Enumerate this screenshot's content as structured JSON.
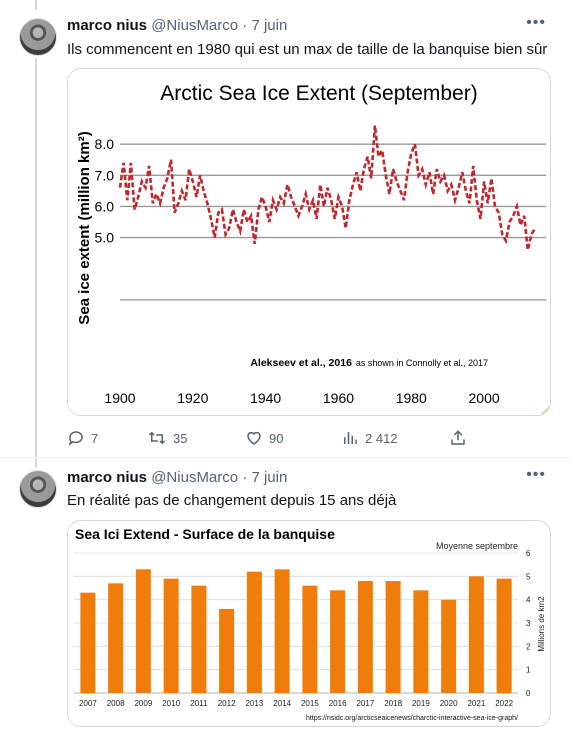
{
  "tweets": [
    {
      "name": "marco nius",
      "handle": "@NiusMarco",
      "date": "· 7 juin",
      "text": "Ils commencent en 1980 qui est un max de taille de la banquise bien sûr",
      "actions": {
        "replies": "7",
        "retweets": "35",
        "likes": "90",
        "views": "2 412"
      }
    },
    {
      "name": "marco nius",
      "handle": "@NiusMarco",
      "date": "· 7 juin",
      "text": "En réalité pas de changement depuis 15 ans déjà"
    }
  ],
  "chart_data": [
    {
      "type": "line",
      "title": "Arctic Sea Ice Extent (September)",
      "ylabel": "Sea ice extent (million km²)",
      "xlabel": "",
      "citation_bold": "Alekseev et al., 2016",
      "citation_rest": "as shown in Connolly et al., 2017",
      "xlim": [
        1900,
        2017
      ],
      "ylim": [
        2.0,
        9.0
      ],
      "x_ticks": [
        "1900",
        "1920",
        "1940",
        "1960",
        "1980",
        "2000"
      ],
      "y_ticks": [
        "5.0",
        "6.0",
        "7.0",
        "8.0"
      ],
      "line_color": "#c1272d",
      "x": [
        1900,
        1901,
        1902,
        1903,
        1904,
        1905,
        1906,
        1907,
        1908,
        1909,
        1910,
        1911,
        1912,
        1913,
        1914,
        1915,
        1916,
        1917,
        1918,
        1919,
        1920,
        1921,
        1922,
        1923,
        1924,
        1925,
        1926,
        1927,
        1928,
        1929,
        1930,
        1931,
        1932,
        1933,
        1934,
        1935,
        1936,
        1937,
        1938,
        1939,
        1940,
        1941,
        1942,
        1943,
        1944,
        1945,
        1946,
        1947,
        1948,
        1949,
        1950,
        1951,
        1952,
        1953,
        1954,
        1955,
        1956,
        1957,
        1958,
        1959,
        1960,
        1961,
        1962,
        1963,
        1964,
        1965,
        1966,
        1967,
        1968,
        1969,
        1970,
        1971,
        1972,
        1973,
        1974,
        1975,
        1976,
        1977,
        1978,
        1979,
        1980,
        1981,
        1982,
        1983,
        1984,
        1985,
        1986,
        1987,
        1988,
        1989,
        1990,
        1991,
        1992,
        1993,
        1994,
        1995,
        1996,
        1997,
        1998,
        1999,
        2000,
        2001,
        2002,
        2003,
        2004,
        2005,
        2006,
        2007,
        2008,
        2009,
        2010,
        2011,
        2012,
        2013,
        2014
      ],
      "y": [
        6.6,
        7.4,
        6.2,
        7.4,
        5.9,
        6.3,
        6.8,
        6.6,
        7.3,
        6.1,
        6.4,
        6.1,
        6.6,
        6.9,
        7.5,
        5.8,
        6.1,
        6.5,
        6.2,
        7.2,
        6.8,
        6.3,
        7.0,
        6.5,
        6.1,
        5.6,
        5.0,
        5.8,
        5.9,
        5.1,
        5.3,
        5.9,
        5.5,
        5.2,
        5.9,
        5.5,
        5.7,
        4.8,
        5.9,
        6.3,
        6.0,
        5.5,
        6.2,
        5.9,
        6.3,
        6.1,
        6.7,
        6.3,
        6.0,
        5.7,
        6.0,
        6.4,
        5.9,
        6.2,
        5.6,
        6.7,
        6.0,
        6.6,
        6.2,
        5.6,
        6.3,
        6.0,
        5.3,
        6.2,
        6.7,
        7.1,
        6.5,
        7.2,
        7.6,
        6.9,
        8.6,
        7.6,
        7.8,
        7.0,
        6.4,
        7.2,
        6.8,
        6.5,
        6.2,
        7.1,
        7.7,
        8.0,
        7.0,
        7.2,
        6.7,
        7.1,
        6.4,
        7.2,
        6.8,
        7.0,
        6.5,
        6.7,
        6.2,
        6.6,
        7.1,
        6.5,
        6.1,
        7.3,
        6.2,
        5.6,
        6.8,
        6.1,
        6.9,
        6.0,
        5.8,
        5.1,
        4.9,
        5.5,
        5.7,
        6.0,
        5.4,
        5.7,
        4.6,
        5.1,
        5.3
      ]
    },
    {
      "type": "bar",
      "title": "Sea Ici Extend - Surface de la banquise",
      "legend": "Moyenne septembre",
      "ylabel": "Millions de km2",
      "source": "https://nsidc.org/arcticseaicenews/charctic-interactive-sea-ice-graph/",
      "bar_color": "#f07d0a",
      "ylim": [
        0,
        6
      ],
      "y_ticks": [
        "0",
        "1",
        "2",
        "3",
        "4",
        "5",
        "6"
      ],
      "categories": [
        "2007",
        "2008",
        "2009",
        "2010",
        "2011",
        "2012",
        "2013",
        "2014",
        "2015",
        "2016",
        "2017",
        "2018",
        "2019",
        "2020",
        "2021",
        "2022"
      ],
      "values": [
        4.3,
        4.7,
        5.3,
        4.9,
        4.6,
        3.6,
        5.2,
        5.3,
        4.6,
        4.4,
        4.8,
        4.8,
        4.4,
        4.0,
        5.0,
        4.9
      ]
    }
  ]
}
